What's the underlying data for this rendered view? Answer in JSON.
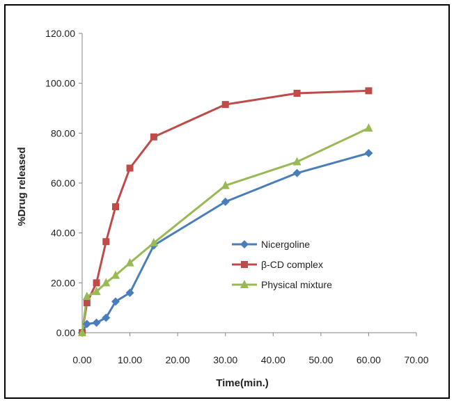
{
  "chart_data": {
    "type": "line",
    "xlabel": "Time(min.)",
    "ylabel": "%Drug released",
    "xlim": [
      0,
      70
    ],
    "ylim": [
      0,
      120
    ],
    "x_ticks": [
      "0.00",
      "10.00",
      "20.00",
      "30.00",
      "40.00",
      "50.00",
      "60.00",
      "70.00"
    ],
    "y_ticks": [
      "0.00",
      "20.00",
      "40.00",
      "60.00",
      "80.00",
      "100.00",
      "120.00"
    ],
    "grid": false,
    "legend_position": "right-middle",
    "series": [
      {
        "name": "Nicergoline",
        "color": "#4a7ebb",
        "marker": "diamond",
        "x": [
          0,
          1,
          3,
          5,
          7,
          10,
          15,
          30,
          45,
          60
        ],
        "y": [
          0,
          3.5,
          4,
          6,
          12.5,
          16,
          35,
          52.5,
          64,
          72
        ]
      },
      {
        "name": "β-CD complex",
        "color": "#be4b48",
        "marker": "square",
        "x": [
          0,
          1,
          3,
          5,
          7,
          10,
          15,
          30,
          45,
          60
        ],
        "y": [
          0,
          12,
          20,
          36.5,
          50.5,
          66,
          78.5,
          91.5,
          96,
          97
        ]
      },
      {
        "name": "Physical mixture",
        "color": "#98b954",
        "marker": "triangle",
        "x": [
          0,
          1,
          3,
          5,
          7,
          10,
          15,
          30,
          45,
          60
        ],
        "y": [
          0,
          14.5,
          16.5,
          20,
          23,
          28,
          36,
          59,
          68.5,
          82
        ]
      }
    ]
  }
}
